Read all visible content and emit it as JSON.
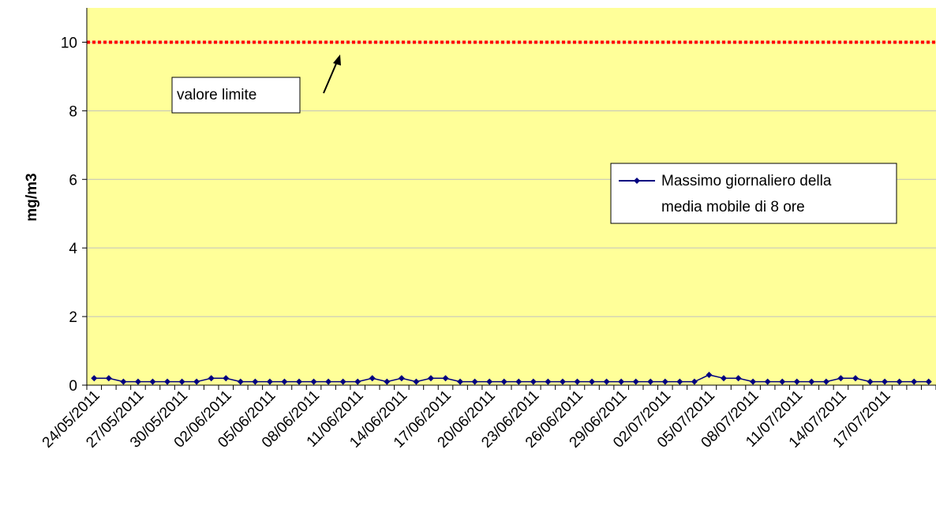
{
  "chart_data": {
    "type": "line",
    "title": "",
    "xlabel": "",
    "ylabel": "mg/m3",
    "ylim": [
      0,
      11
    ],
    "yticks": [
      0,
      2,
      4,
      6,
      8,
      10
    ],
    "grid": true,
    "legend_position": "right",
    "colors": {
      "plot_background": "#ffff99",
      "series": "#000080",
      "limit_line": "#ff0000",
      "grid": "#c0c0c0"
    },
    "limit": {
      "value": 10,
      "label": "valore limite"
    },
    "tick_labels": [
      "24/05/2011",
      "27/05/2011",
      "30/05/2011",
      "02/06/2011",
      "05/06/2011",
      "08/06/2011",
      "11/06/2011",
      "14/06/2011",
      "17/06/2011",
      "20/06/2011",
      "23/06/2011",
      "26/06/2011",
      "29/06/2011",
      "02/07/2011",
      "05/07/2011",
      "08/07/2011",
      "11/07/2011",
      "14/07/2011",
      "17/07/2011"
    ],
    "series": [
      {
        "name": "Massimo giornaliero della media mobile di 8 ore",
        "legend_lines": [
          "Massimo giornaliero della",
          "media mobile di 8 ore"
        ],
        "start_date": "24/05/2011",
        "values": [
          0.2,
          0.2,
          0.1,
          0.1,
          0.1,
          0.1,
          0.1,
          0.1,
          0.2,
          0.2,
          0.1,
          0.1,
          0.1,
          0.1,
          0.1,
          0.1,
          0.1,
          0.1,
          0.1,
          0.2,
          0.1,
          0.2,
          0.1,
          0.2,
          0.2,
          0.1,
          0.1,
          0.1,
          0.1,
          0.1,
          0.1,
          0.1,
          0.1,
          0.1,
          0.1,
          0.1,
          0.1,
          0.1,
          0.1,
          0.1,
          0.1,
          0.1,
          0.3,
          0.2,
          0.2,
          0.1,
          0.1,
          0.1,
          0.1,
          0.1,
          0.1,
          0.2,
          0.2,
          0.1,
          0.1,
          0.1,
          0.1,
          0.1
        ]
      }
    ]
  }
}
